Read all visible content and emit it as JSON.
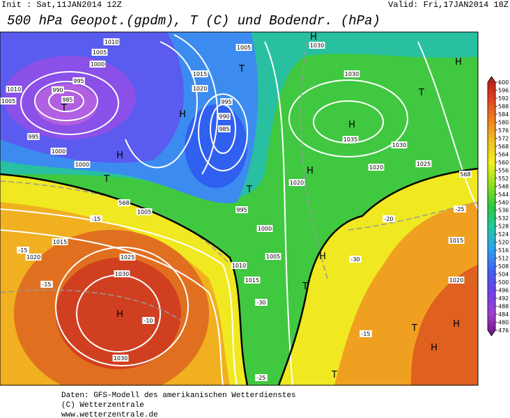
{
  "header": {
    "init": "Init : Sat,11JAN2014 12Z",
    "valid": "Valid: Fri,17JAN2014 18Z",
    "title": "500 hPa Geopot.(gpdm), T (C) und Bodendr. (hPa)"
  },
  "colorbar": {
    "ticks": [
      600,
      596,
      592,
      588,
      584,
      580,
      576,
      572,
      568,
      564,
      560,
      556,
      552,
      548,
      544,
      540,
      536,
      532,
      528,
      524,
      520,
      516,
      512,
      508,
      504,
      500,
      496,
      492,
      488,
      484,
      480,
      476
    ],
    "colors": [
      "#b01818",
      "#e04020",
      "#f08020",
      "#f0c020",
      "#f0f020",
      "#90e020",
      "#30c840",
      "#20c8a0",
      "#30a0f0",
      "#4060f0",
      "#7040e8",
      "#a040d0",
      "#6a1080"
    ]
  },
  "map_labels": [
    "T",
    "985",
    "990",
    "995",
    "1000",
    "1005",
    "1010",
    "1010",
    "1005",
    "995",
    "1000",
    "H",
    "T",
    "1000",
    "H",
    "1020",
    "1015",
    "990",
    "985",
    "T",
    "995",
    "1005",
    "1030",
    "H",
    "1030",
    "H",
    "1035",
    "1030",
    "1025",
    "1020",
    "H",
    "T",
    "H",
    "1020",
    "T",
    "995",
    "1000",
    "1005",
    "1015",
    "1020",
    "1025",
    "1030",
    "H",
    "1030",
    "-10",
    "-15",
    "-15",
    "-15",
    "1005",
    "1010",
    "1015",
    "-30",
    "T",
    "H",
    "-25",
    "T",
    "H",
    "T",
    "H",
    "1020",
    "1015",
    "-20",
    "-25",
    "-30",
    "-15",
    "568",
    "568"
  ],
  "footer": [
    "Daten: GFS-Modell des amerikanischen Wetterdienstes",
    "(C) Wetterzentrale",
    "www.wetterzentrale.de"
  ]
}
